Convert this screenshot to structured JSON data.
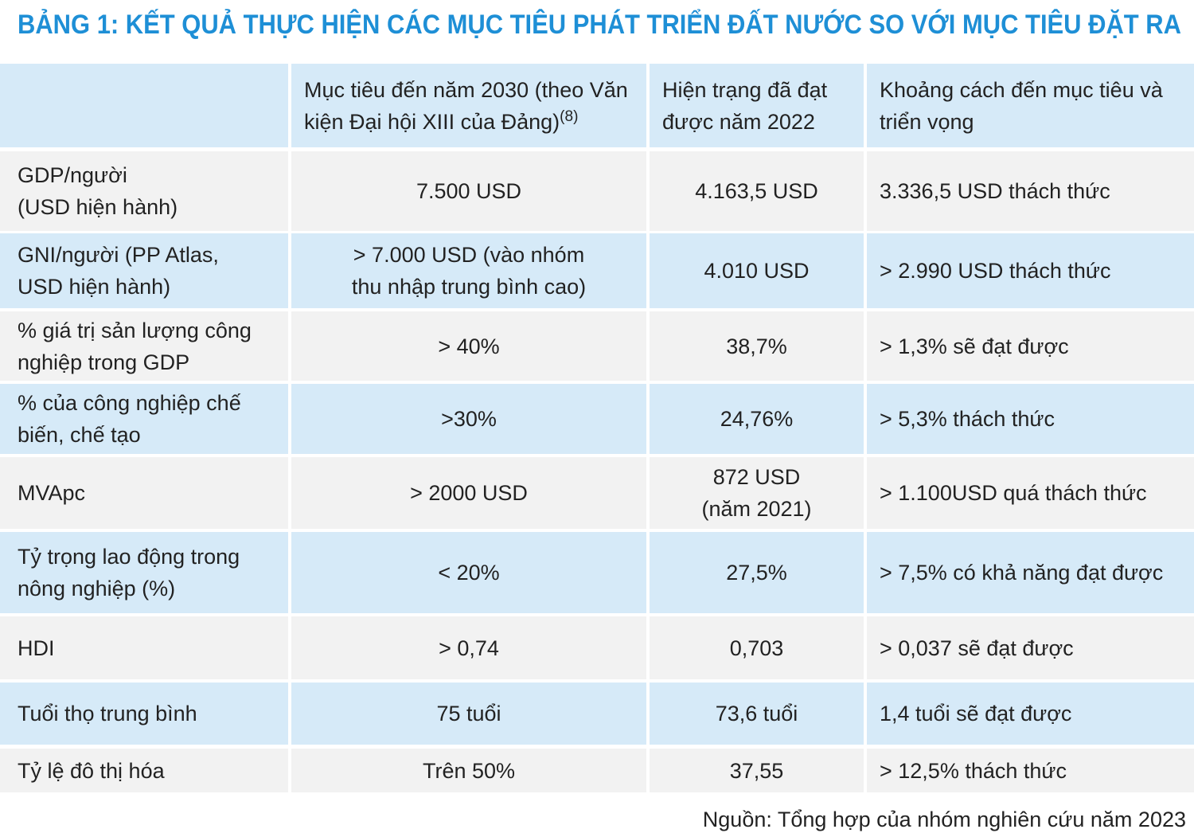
{
  "title": "BẢNG 1: KẾT QUẢ THỰC HIỆN CÁC MỤC TIÊU PHÁT TRIỂN ĐẤT NƯỚC SO VỚI MỤC TIÊU ĐẶT RA",
  "table": {
    "header": [
      "Mục tiêu đến năm 2030 (theo Văn kiện Đại hội XIII của Đảng)",
      "Hiện trạng đã đạt được năm 2022",
      "Khoảng cách  đến mục tiêu và triển vọng"
    ],
    "header_note": "(8)",
    "rows": [
      [
        "GDP/người\n(USD hiện hành)",
        "7.500 USD",
        "4.163,5 USD",
        "3.336,5 USD thách thức"
      ],
      [
        "GNI/người (PP Atlas,\nUSD hiện hành)",
        "> 7.000 USD (vào nhóm\nthu nhập trung bình cao)",
        "4.010 USD",
        "> 2.990 USD thách thức"
      ],
      [
        "% giá trị sản lượng công nghiệp trong GDP",
        "> 40%",
        "38,7%",
        "> 1,3% sẽ đạt được"
      ],
      [
        "% của công nghiệp chế biến, chế tạo",
        ">30%",
        "24,76%",
        "> 5,3% thách thức"
      ],
      [
        "MVApc",
        "> 2000 USD",
        "872 USD\n(năm 2021)",
        "> 1.100USD quá thách thức"
      ],
      [
        "Tỷ trọng lao động trong nông nghiệp (%)",
        "< 20%",
        "27,5%",
        "> 7,5% có khả năng đạt được"
      ],
      [
        "HDI",
        "> 0,74",
        "0,703",
        "> 0,037 sẽ đạt được"
      ],
      [
        "Tuổi thọ trung bình",
        "75 tuổi",
        "73,6 tuổi",
        "1,4 tuổi sẽ đạt được"
      ],
      [
        "Tỷ lệ đô thị hóa",
        "Trên 50%",
        "37,55",
        "> 12,5% thách thức"
      ]
    ]
  },
  "source": "Nguồn: Tổng hợp của nhóm nghiên cứu năm 2023"
}
